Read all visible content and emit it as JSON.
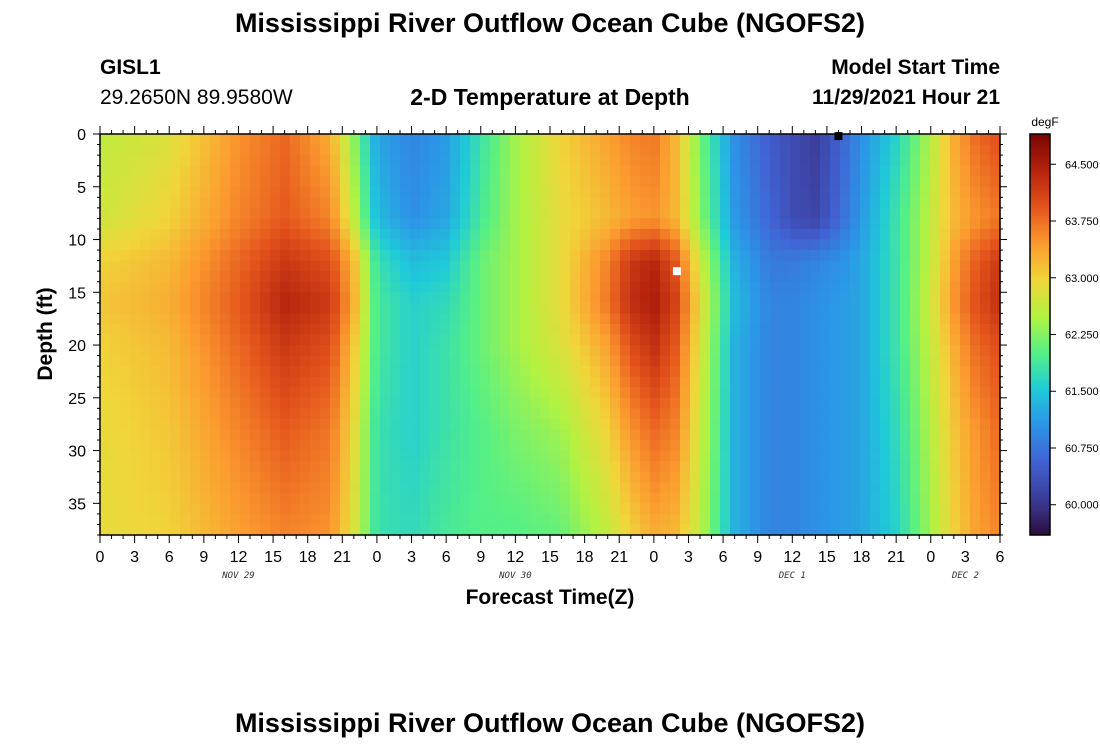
{
  "header": {
    "title": "Mississippi River Outflow Ocean Cube (NGOFS2)",
    "station_id": "GISL1",
    "coordinates": "29.2650N  89.9580W",
    "subtitle": "2-D Temperature at Depth",
    "model_start_label": "Model Start Time",
    "model_start_value": "11/29/2021 Hour 21"
  },
  "footer": {
    "title": "Mississippi River Outflow Ocean Cube (NGOFS2)"
  },
  "chart_data": {
    "type": "heatmap",
    "title": "2-D Temperature at Depth",
    "xlabel": "Forecast Time(Z)",
    "ylabel": "Depth (ft)",
    "x_tick_labels": [
      "0",
      "3",
      "6",
      "9",
      "12",
      "15",
      "18",
      "21",
      "0",
      "3",
      "6",
      "9",
      "12",
      "15",
      "18",
      "21",
      "0",
      "3",
      "6",
      "9",
      "12",
      "15",
      "18",
      "21",
      "0",
      "3",
      "6"
    ],
    "x_hour_range": [
      0,
      78
    ],
    "x_date_labels": [
      {
        "label": "NOV 29",
        "hour": 12
      },
      {
        "label": "NOV 30",
        "hour": 36
      },
      {
        "label": "DEC 1",
        "hour": 60
      },
      {
        "label": "DEC 2",
        "hour": 75
      }
    ],
    "y_ticks": [
      0,
      5,
      10,
      15,
      20,
      25,
      30,
      35
    ],
    "ylim": [
      0,
      38
    ],
    "y_inverted": true,
    "colorbar": {
      "unit": "degF",
      "tick_labels": [
        "64.500",
        "63.750",
        "63.000",
        "62.250",
        "61.500",
        "60.750",
        "60.000"
      ],
      "tick_values": [
        64.5,
        63.75,
        63.0,
        62.25,
        61.5,
        60.75,
        60.0
      ],
      "range": [
        59.6,
        64.9
      ],
      "colors": [
        "#2b0f3e",
        "#3b3c99",
        "#4262d3",
        "#2c94e6",
        "#20cbd8",
        "#55f086",
        "#b3f241",
        "#f0d63a",
        "#fb9a2f",
        "#e4541c",
        "#b5230d",
        "#7a0403"
      ]
    },
    "hours": [
      0,
      6,
      12,
      16,
      20,
      22,
      24,
      27,
      30,
      33,
      36,
      40,
      44,
      46,
      48,
      50,
      52,
      55,
      58,
      60,
      62,
      64,
      66,
      69,
      72,
      74,
      76,
      78
    ],
    "depths": [
      0,
      8,
      12,
      16,
      20,
      28,
      38
    ],
    "temperature": [
      [
        62.6,
        62.8,
        63.5,
        63.8,
        63.3,
        62.3,
        61.2,
        60.9,
        61.1,
        61.8,
        62.4,
        63.0,
        63.4,
        63.6,
        63.7,
        63.2,
        62.2,
        61.0,
        60.5,
        60.3,
        60.1,
        60.5,
        61.0,
        61.6,
        62.5,
        63.3,
        63.8,
        64.0
      ],
      [
        62.7,
        63.0,
        63.6,
        63.9,
        63.6,
        62.6,
        61.4,
        61.0,
        61.2,
        61.9,
        62.4,
        62.9,
        63.2,
        63.4,
        63.5,
        63.2,
        62.3,
        61.1,
        60.6,
        60.3,
        60.2,
        60.6,
        61.1,
        61.8,
        62.6,
        63.2,
        63.5,
        63.7
      ],
      [
        63.0,
        63.2,
        63.8,
        64.2,
        64.0,
        63.2,
        61.8,
        61.4,
        61.5,
        62.1,
        62.4,
        62.9,
        63.6,
        64.2,
        64.4,
        63.9,
        62.7,
        61.3,
        60.8,
        60.8,
        60.9,
        61.0,
        61.2,
        61.8,
        62.6,
        63.4,
        63.9,
        64.2
      ],
      [
        63.1,
        63.3,
        63.9,
        64.4,
        64.2,
        63.3,
        61.9,
        61.6,
        61.7,
        62.1,
        62.4,
        62.9,
        63.7,
        64.3,
        64.5,
        64.1,
        62.9,
        61.4,
        60.9,
        60.9,
        61.0,
        61.1,
        61.2,
        61.8,
        62.7,
        63.5,
        64.0,
        64.3
      ],
      [
        63.0,
        63.2,
        63.8,
        64.2,
        64.0,
        63.1,
        61.9,
        61.6,
        61.8,
        62.1,
        62.4,
        62.8,
        63.4,
        64.0,
        64.3,
        63.9,
        62.8,
        61.3,
        60.9,
        60.9,
        61.0,
        61.1,
        61.2,
        61.8,
        62.6,
        63.3,
        63.8,
        64.0
      ],
      [
        62.9,
        63.1,
        63.6,
        63.9,
        63.7,
        62.9,
        61.8,
        61.6,
        61.8,
        62.0,
        62.2,
        62.4,
        63.0,
        63.5,
        63.8,
        63.6,
        62.7,
        61.3,
        60.9,
        60.9,
        61.0,
        61.1,
        61.2,
        61.7,
        62.5,
        63.1,
        63.5,
        63.8
      ],
      [
        62.9,
        63.0,
        63.4,
        63.6,
        63.5,
        62.8,
        61.8,
        61.7,
        61.9,
        62.0,
        62.0,
        62.1,
        62.6,
        63.0,
        63.3,
        63.2,
        62.6,
        61.3,
        60.9,
        60.9,
        61.0,
        61.1,
        61.2,
        61.6,
        62.4,
        63.0,
        63.4,
        63.6
      ]
    ],
    "markers": [
      {
        "hour": 50,
        "depth": 13,
        "color": "#ffffff"
      },
      {
        "hour": 64,
        "depth": 0.2,
        "color": "#000000"
      }
    ]
  }
}
